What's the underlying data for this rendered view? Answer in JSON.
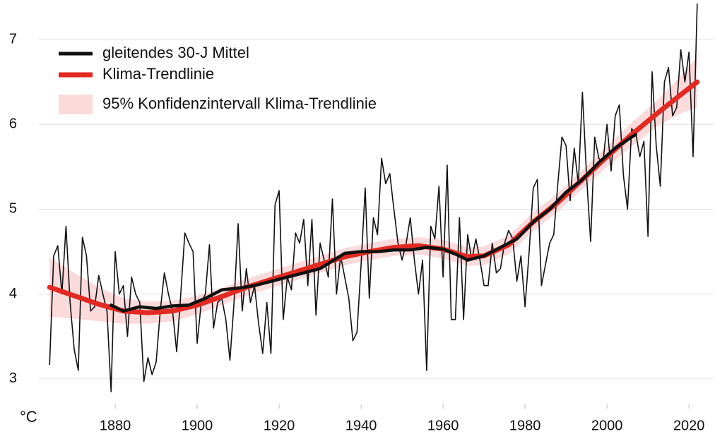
{
  "chart_data": {
    "type": "line",
    "y_label": "°C",
    "xlim": [
      1862,
      2026
    ],
    "ylim": [
      2.7,
      7.45
    ],
    "xticks": [
      1880,
      1900,
      1920,
      1940,
      1960,
      1980,
      2000,
      2020
    ],
    "yticks": [
      3,
      4,
      5,
      6,
      7
    ],
    "grid": true,
    "legend": "upper left",
    "series": [
      {
        "color": "#111111",
        "x": [
          1864,
          1865,
          1866,
          1867,
          1868,
          1869,
          1870,
          1871,
          1872,
          1873,
          1874,
          1875,
          1876,
          1877,
          1878,
          1879,
          1880,
          1881,
          1882,
          1883,
          1884,
          1885,
          1886,
          1887,
          1888,
          1889,
          1890,
          1891,
          1892,
          1893,
          1894,
          1895,
          1896,
          1897,
          1898,
          1899,
          1900,
          1901,
          1902,
          1903,
          1904,
          1905,
          1906,
          1907,
          1908,
          1909,
          1910,
          1911,
          1912,
          1913,
          1914,
          1915,
          1916,
          1917,
          1918,
          1919,
          1920,
          1921,
          1922,
          1923,
          1924,
          1925,
          1926,
          1927,
          1928,
          1929,
          1930,
          1931,
          1932,
          1933,
          1934,
          1935,
          1936,
          1937,
          1938,
          1939,
          1940,
          1941,
          1942,
          1943,
          1944,
          1945,
          1946,
          1947,
          1948,
          1949,
          1950,
          1951,
          1952,
          1953,
          1954,
          1955,
          1956,
          1957,
          1958,
          1959,
          1960,
          1961,
          1962,
          1963,
          1964,
          1965,
          1966,
          1967,
          1968,
          1969,
          1970,
          1971,
          1972,
          1973,
          1974,
          1975,
          1976,
          1977,
          1978,
          1979,
          1980,
          1981,
          1982,
          1983,
          1984,
          1985,
          1986,
          1987,
          1988,
          1989,
          1990,
          1991,
          1992,
          1993,
          1994,
          1995,
          1996,
          1997,
          1998,
          1999,
          2000,
          2001,
          2002,
          2003,
          2004,
          2005,
          2006,
          2007,
          2008,
          2009,
          2010,
          2011,
          2012,
          2013,
          2014,
          2015,
          2016,
          2017,
          2018,
          2019,
          2020,
          2021,
          2022
        ],
        "values": [
          3.17,
          4.45,
          4.57,
          4.0,
          4.8,
          3.9,
          3.35,
          3.1,
          4.67,
          4.45,
          3.8,
          3.85,
          4.22,
          4.0,
          3.8,
          2.85,
          4.5,
          4.0,
          4.1,
          3.5,
          4.2,
          4.0,
          3.9,
          2.97,
          3.25,
          3.05,
          3.2,
          3.8,
          4.25,
          4.0,
          3.8,
          3.32,
          4.0,
          4.72,
          4.6,
          4.5,
          3.42,
          3.9,
          4.0,
          4.58,
          3.6,
          3.9,
          3.95,
          3.7,
          3.22,
          3.9,
          4.83,
          3.8,
          4.3,
          3.9,
          4.1,
          3.65,
          3.3,
          3.9,
          3.3,
          5.05,
          5.22,
          3.7,
          4.2,
          4.05,
          4.72,
          4.6,
          4.88,
          4.1,
          4.88,
          3.75,
          4.6,
          4.4,
          4.2,
          5.12,
          4.0,
          4.45,
          4.2,
          3.95,
          3.45,
          3.55,
          4.35,
          5.25,
          3.95,
          4.9,
          4.7,
          5.6,
          5.3,
          5.42,
          5.0,
          4.6,
          4.4,
          4.6,
          4.9,
          4.4,
          4.0,
          4.4,
          3.1,
          4.8,
          4.65,
          5.27,
          4.2,
          5.52,
          3.7,
          3.7,
          4.9,
          3.7,
          4.7,
          4.4,
          4.65,
          4.4,
          4.1,
          4.1,
          4.6,
          4.25,
          4.3,
          4.6,
          4.75,
          4.65,
          4.15,
          4.45,
          3.85,
          4.5,
          5.25,
          5.35,
          4.1,
          4.35,
          4.6,
          4.7,
          5.3,
          5.85,
          5.75,
          5.1,
          5.72,
          5.3,
          6.38,
          5.4,
          4.62,
          5.85,
          5.6,
          5.55,
          6.0,
          5.45,
          6.1,
          6.23,
          5.4,
          5.0,
          5.95,
          5.9,
          5.62,
          5.8,
          4.68,
          6.62,
          5.75,
          5.27,
          6.5,
          6.67,
          6.1,
          6.2,
          6.88,
          6.5,
          6.85,
          5.62,
          7.42
        ]
      },
      {
        "name": "95% Konfidenzintervall Klima-Trendlinie",
        "color": "#fadadb",
        "x": [
          1864,
          1870,
          1876,
          1882,
          1888,
          1894,
          1900,
          1906,
          1912,
          1918,
          1924,
          1930,
          1936,
          1942,
          1948,
          1954,
          1960,
          1966,
          1970,
          1976,
          1982,
          1988,
          1994,
          2000,
          2006,
          2012,
          2018,
          2022
        ],
        "lower": [
          3.73,
          3.71,
          3.68,
          3.65,
          3.65,
          3.68,
          3.76,
          3.87,
          3.98,
          4.07,
          4.16,
          4.25,
          4.34,
          4.4,
          4.45,
          4.47,
          4.42,
          4.33,
          4.34,
          4.47,
          4.74,
          4.97,
          5.24,
          5.5,
          5.74,
          5.97,
          6.13,
          6.2
        ],
        "upper": [
          4.43,
          4.25,
          4.08,
          3.95,
          3.91,
          3.92,
          3.98,
          4.07,
          4.18,
          4.27,
          4.36,
          4.45,
          4.54,
          4.6,
          4.65,
          4.67,
          4.64,
          4.55,
          4.56,
          4.69,
          4.96,
          5.19,
          5.46,
          5.74,
          6.02,
          6.27,
          6.57,
          6.8
        ]
      },
      {
        "name": "Klima-Trendlinie",
        "color": "#e32a22",
        "x": [
          1864,
          1870,
          1876,
          1882,
          1888,
          1894,
          1900,
          1906,
          1912,
          1918,
          1924,
          1930,
          1936,
          1942,
          1948,
          1954,
          1960,
          1966,
          1970,
          1976,
          1982,
          1988,
          1994,
          2000,
          2006,
          2012,
          2018,
          2022
        ],
        "values": [
          4.08,
          3.98,
          3.88,
          3.8,
          3.78,
          3.8,
          3.87,
          3.97,
          4.08,
          4.17,
          4.26,
          4.35,
          4.44,
          4.5,
          4.55,
          4.57,
          4.53,
          4.44,
          4.45,
          4.58,
          4.85,
          5.08,
          5.35,
          5.62,
          5.88,
          6.12,
          6.35,
          6.5
        ]
      },
      {
        "name": "gleitendes 30-J Mittel",
        "color": "#111111",
        "x": [
          1879,
          1882,
          1886,
          1890,
          1894,
          1898,
          1902,
          1906,
          1910,
          1914,
          1918,
          1922,
          1926,
          1930,
          1934,
          1936,
          1940,
          1944,
          1948,
          1952,
          1956,
          1960,
          1964,
          1966,
          1970,
          1974,
          1978,
          1982,
          1986,
          1990,
          1994,
          1998,
          2002,
          2006,
          2007
        ],
        "values": [
          3.87,
          3.8,
          3.85,
          3.83,
          3.86,
          3.87,
          3.95,
          4.05,
          4.07,
          4.1,
          4.15,
          4.2,
          4.25,
          4.3,
          4.42,
          4.48,
          4.5,
          4.5,
          4.52,
          4.52,
          4.55,
          4.53,
          4.45,
          4.4,
          4.45,
          4.55,
          4.65,
          4.85,
          5.0,
          5.2,
          5.35,
          5.55,
          5.72,
          5.85,
          5.88
        ]
      }
    ]
  }
}
